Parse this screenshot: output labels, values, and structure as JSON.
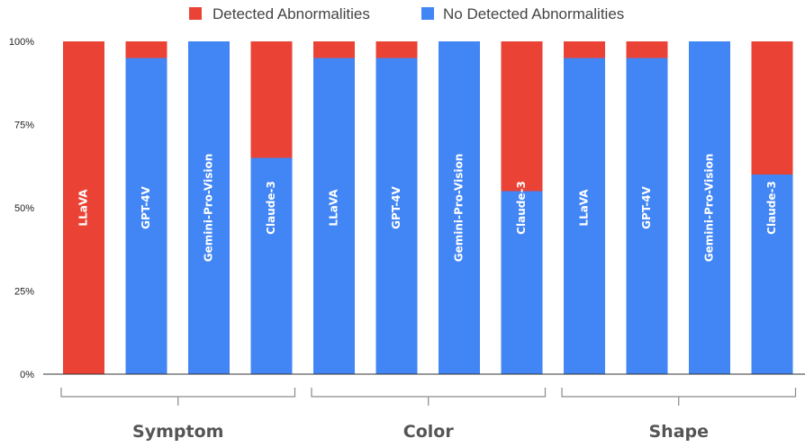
{
  "chart_data": {
    "type": "bar",
    "stacked": true,
    "percent_stacked": true,
    "groups": [
      {
        "label": "Symptom",
        "categories": [
          "LLaVA",
          "GPT-4V",
          "Gemini-Pro-Vision",
          "Claude-3"
        ]
      },
      {
        "label": "Color",
        "categories": [
          "LLaVA",
          "GPT-4V",
          "Gemini-Pro-Vision",
          "Claude-3"
        ]
      },
      {
        "label": "Shape",
        "categories": [
          "LLaVA",
          "GPT-4V",
          "Gemini-Pro-Vision",
          "Claude-3"
        ]
      }
    ],
    "categories": [
      "LLaVA",
      "GPT-4V",
      "Gemini-Pro-Vision",
      "Claude-3",
      "LLaVA",
      "GPT-4V",
      "Gemini-Pro-Vision",
      "Claude-3",
      "LLaVA",
      "GPT-4V",
      "Gemini-Pro-Vision",
      "Claude-3"
    ],
    "series": [
      {
        "name": "No Detected Abnormalities",
        "color": "#4285F4",
        "values": [
          0,
          95,
          100,
          65,
          95,
          95,
          100,
          55,
          95,
          95,
          100,
          60
        ]
      },
      {
        "name": "Detected Abnormalities",
        "color": "#EA4335",
        "values": [
          100,
          5,
          0,
          35,
          5,
          5,
          0,
          45,
          5,
          5,
          0,
          40
        ]
      }
    ],
    "legend": {
      "position": "top",
      "order": [
        "Detected Abnormalities",
        "No Detected Abnormalities"
      ]
    },
    "y_ticks": [
      "0%",
      "25%",
      "50%",
      "75%",
      "100%"
    ],
    "ylim": [
      0,
      100
    ],
    "grid": false
  }
}
